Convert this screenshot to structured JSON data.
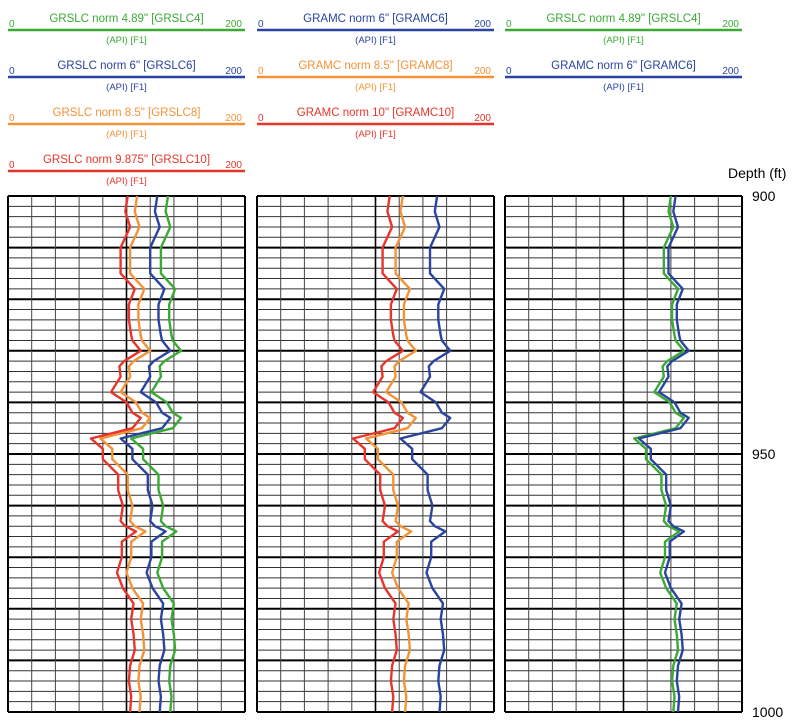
{
  "chart_data": {
    "type": "line",
    "y_axis": {
      "label": "Depth (ft)",
      "range": [
        900,
        1000
      ],
      "ticks": [
        900,
        950,
        1000
      ]
    },
    "tracks": [
      {
        "id": "track-1",
        "curves": [
          {
            "name": "GRSLC norm 4.89\" [GRSLC4]",
            "unit": "(API) [F1]",
            "min": 0,
            "max": 200,
            "color": "#3aaa35",
            "depth": [
              900,
              903,
              906,
              910,
              912,
              915,
              918,
              921,
              924,
              927,
              928,
              930,
              932,
              933,
              935,
              938,
              940,
              942,
              943,
              945,
              947,
              949,
              951,
              954,
              957,
              960,
              963,
              964,
              965,
              967,
              970,
              973,
              976,
              979,
              982,
              985,
              988,
              991,
              994,
              997,
              1000
            ],
            "value": [
              135,
              133,
              137,
              129,
              129,
              129,
              141,
              136,
              136,
              138,
              139,
              146,
              132,
              128,
              129,
              121,
              134,
              139,
              146,
              139,
              104,
              114,
              114,
              127,
              127,
              131,
              129,
              133,
              142,
              130,
              130,
              126,
              131,
              140,
              138,
              140,
              141,
              137,
              136,
              138,
              137
            ]
          },
          {
            "name": "GRSLC norm 6\" [GRSLC6]",
            "unit": "(API) [F1]",
            "min": 0,
            "max": 200,
            "color": "#2a44a0",
            "depth": [
              900,
              903,
              906,
              910,
              912,
              915,
              918,
              921,
              924,
              927,
              928,
              930,
              932,
              933,
              935,
              938,
              940,
              942,
              943,
              945,
              947,
              949,
              951,
              954,
              957,
              960,
              963,
              964,
              965,
              967,
              970,
              973,
              976,
              979,
              982,
              985,
              988,
              991,
              994,
              997,
              1000
            ],
            "value": [
              126,
              124,
              128,
              120,
              120,
              120,
              132,
              127,
              127,
              129,
              130,
              137,
              123,
              119,
              120,
              112,
              125,
              130,
              137,
              130,
              95,
              105,
              105,
              118,
              118,
              122,
              120,
              124,
              133,
              121,
              121,
              117,
              122,
              131,
              129,
              131,
              132,
              128,
              127,
              129,
              128
            ]
          },
          {
            "name": "GRSLC norm 8.5\" [GRSLC8]",
            "unit": "(API) [F1]",
            "min": 0,
            "max": 200,
            "color": "#f39237",
            "depth": [
              900,
              903,
              906,
              910,
              912,
              915,
              918,
              921,
              924,
              927,
              928,
              930,
              932,
              933,
              935,
              938,
              940,
              942,
              943,
              945,
              947,
              949,
              951,
              954,
              957,
              960,
              963,
              964,
              965,
              967,
              970,
              973,
              976,
              979,
              982,
              985,
              988,
              991,
              994,
              997,
              1000
            ],
            "value": [
              109,
              107,
              111,
              103,
              103,
              103,
              115,
              110,
              110,
              112,
              113,
              120,
              106,
              102,
              103,
              95,
              108,
              113,
              120,
              113,
              78,
              88,
              88,
              101,
              101,
              105,
              103,
              107,
              116,
              104,
              104,
              100,
              105,
              114,
              112,
              114,
              115,
              111,
              110,
              112,
              111
            ]
          },
          {
            "name": "GRSLC norm 9.875\" [GRSLC10]",
            "unit": "(API) [F1]",
            "min": 0,
            "max": 200,
            "color": "#e8352b",
            "depth": [
              900,
              903,
              906,
              910,
              912,
              915,
              918,
              921,
              924,
              927,
              928,
              930,
              932,
              933,
              935,
              938,
              940,
              942,
              943,
              945,
              947,
              949,
              951,
              954,
              957,
              960,
              963,
              964,
              965,
              967,
              970,
              973,
              976,
              979,
              982,
              985,
              988,
              991,
              994,
              997,
              1000
            ],
            "value": [
              101,
              99,
              103,
              95,
              95,
              95,
              107,
              102,
              102,
              104,
              105,
              112,
              98,
              94,
              95,
              87,
              100,
              105,
              112,
              105,
              70,
              80,
              80,
              93,
              93,
              97,
              95,
              99,
              108,
              96,
              96,
              92,
              97,
              106,
              104,
              106,
              107,
              103,
              102,
              104,
              103
            ]
          }
        ]
      },
      {
        "id": "track-2",
        "curves": [
          {
            "name": "GRAMC norm 6\" [GRAMC6]",
            "unit": "(API) [F1]",
            "min": 0,
            "max": 200,
            "color": "#2a44a0",
            "depth": [
              900,
              903,
              906,
              910,
              912,
              915,
              918,
              921,
              924,
              927,
              928,
              930,
              932,
              933,
              935,
              938,
              940,
              942,
              943,
              945,
              947,
              949,
              951,
              954,
              957,
              960,
              963,
              964,
              965,
              967,
              970,
              973,
              976,
              979,
              982,
              985,
              988,
              991,
              994,
              997,
              1000
            ],
            "value": [
              152,
              150,
              154,
              146,
              146,
              146,
              158,
              153,
              153,
              155,
              156,
              163,
              149,
              145,
              146,
              138,
              151,
              156,
              163,
              156,
              121,
              131,
              131,
              144,
              144,
              148,
              146,
              150,
              159,
              147,
              147,
              143,
              148,
              157,
              155,
              157,
              158,
              154,
              153,
              155,
              154
            ]
          },
          {
            "name": "GRAMC norm 8.5\" [GRAMC8]",
            "unit": "(API) [F1]",
            "min": 0,
            "max": 200,
            "color": "#f39237",
            "depth": [
              900,
              903,
              906,
              910,
              912,
              915,
              918,
              921,
              924,
              927,
              928,
              930,
              932,
              933,
              935,
              938,
              940,
              942,
              943,
              945,
              947,
              949,
              951,
              954,
              957,
              960,
              963,
              964,
              965,
              967,
              970,
              973,
              976,
              979,
              982,
              985,
              988,
              991,
              994,
              997,
              1000
            ],
            "value": [
              123,
              121,
              125,
              117,
              117,
              117,
              129,
              124,
              124,
              126,
              127,
              134,
              120,
              116,
              117,
              109,
              122,
              127,
              134,
              127,
              92,
              102,
              102,
              115,
              115,
              119,
              117,
              121,
              130,
              118,
              118,
              114,
              119,
              128,
              126,
              128,
              129,
              125,
              124,
              126,
              125
            ]
          },
          {
            "name": "GRAMC norm 10\" [GRAMC10]",
            "unit": "(API) [F1]",
            "min": 0,
            "max": 200,
            "color": "#e8352b",
            "depth": [
              900,
              903,
              906,
              910,
              912,
              915,
              918,
              921,
              924,
              927,
              928,
              930,
              932,
              933,
              935,
              938,
              940,
              942,
              943,
              945,
              947,
              949,
              951,
              954,
              957,
              960,
              963,
              964,
              965,
              967,
              970,
              973,
              976,
              979,
              982,
              985,
              988,
              991,
              994,
              997,
              1000
            ],
            "value": [
              112,
              110,
              114,
              106,
              106,
              106,
              118,
              113,
              113,
              115,
              116,
              123,
              109,
              105,
              106,
              98,
              111,
              116,
              123,
              116,
              81,
              91,
              91,
              104,
              104,
              108,
              106,
              110,
              119,
              107,
              107,
              103,
              108,
              117,
              115,
              117,
              118,
              114,
              113,
              115,
              114
            ]
          }
        ]
      },
      {
        "id": "track-3",
        "curves": [
          {
            "name": "GRSLC norm 4.89\" [GRSLC4]",
            "unit": "(API) [F1]",
            "min": 0,
            "max": 200,
            "color": "#3aaa35",
            "depth": [
              900,
              903,
              906,
              910,
              912,
              915,
              918,
              921,
              924,
              927,
              928,
              930,
              932,
              933,
              935,
              938,
              940,
              942,
              943,
              945,
              947,
              949,
              951,
              954,
              957,
              960,
              963,
              964,
              965,
              967,
              970,
              973,
              976,
              979,
              982,
              985,
              988,
              991,
              994,
              997,
              1000
            ],
            "value": [
              140,
              138,
              142,
              134,
              134,
              134,
              146,
              141,
              141,
              143,
              144,
              151,
              137,
              133,
              134,
              126,
              139,
              144,
              151,
              144,
              109,
              119,
              119,
              132,
              132,
              136,
              134,
              138,
              147,
              135,
              135,
              131,
              136,
              145,
              143,
              145,
              146,
              142,
              141,
              143,
              142
            ]
          },
          {
            "name": "GRAMC norm 6\" [GRAMC6]",
            "unit": "(API) [F1]",
            "min": 0,
            "max": 200,
            "color": "#2a44a0",
            "depth": [
              900,
              903,
              906,
              910,
              912,
              915,
              918,
              921,
              924,
              927,
              928,
              930,
              932,
              933,
              935,
              938,
              940,
              942,
              943,
              945,
              947,
              949,
              951,
              954,
              957,
              960,
              963,
              964,
              965,
              967,
              970,
              973,
              976,
              979,
              982,
              985,
              988,
              991,
              994,
              997,
              1000
            ],
            "value": [
              144,
              142,
              146,
              138,
              138,
              138,
              150,
              145,
              145,
              147,
              148,
              155,
              141,
              137,
              138,
              130,
              143,
              148,
              155,
              148,
              113,
              123,
              123,
              136,
              136,
              140,
              138,
              142,
              151,
              139,
              139,
              135,
              140,
              149,
              147,
              149,
              150,
              146,
              145,
              147,
              146
            ]
          }
        ]
      }
    ]
  }
}
